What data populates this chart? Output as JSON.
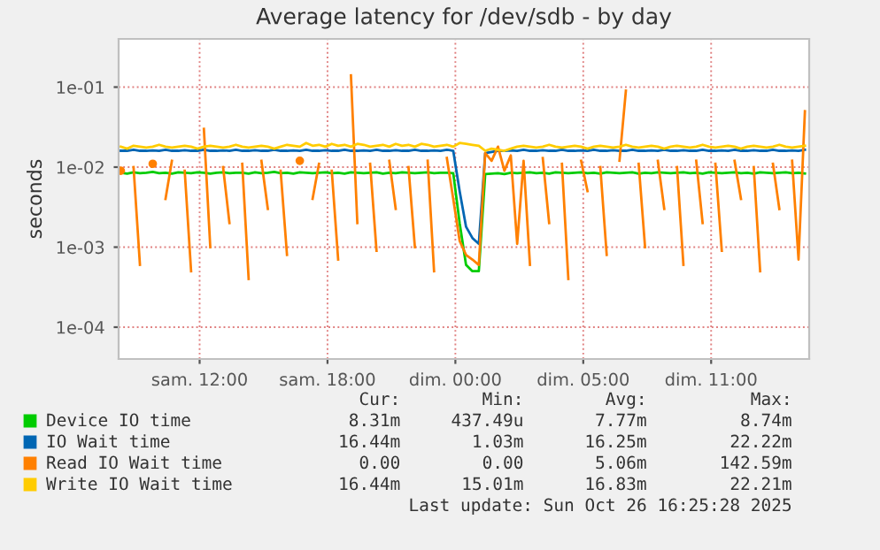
{
  "chart_data": {
    "type": "line",
    "title": "Average latency for /dev/sdb - by day",
    "ylabel": "seconds",
    "log": "y",
    "grid": true,
    "legend": "bottom",
    "marker": "none",
    "line_style": "solid",
    "xlim": [
      "2025-10-25T06:12",
      "2025-10-26T14:36"
    ],
    "ylim": [
      4e-05,
      0.4
    ],
    "xticks": [
      {
        "value": "2025-10-25T10:00",
        "label": "sam. 12:00"
      },
      {
        "value": "2025-10-25T16:00",
        "label": "sam. 18:00"
      },
      {
        "value": "2025-10-25T22:00",
        "label": "dim. 00:00"
      },
      {
        "value": "2025-10-26T04:00",
        "label": "dim. 05:00"
      },
      {
        "value": "2025-10-26T10:00",
        "label": "dim. 11:00"
      }
    ],
    "yticks": [
      {
        "value": 0.0001,
        "label": "1e-04"
      },
      {
        "value": 0.001,
        "label": "1e-03"
      },
      {
        "value": 0.01,
        "label": "1e-02"
      },
      {
        "value": 0.1,
        "label": "1e-01"
      }
    ],
    "x": [
      "2025-10-25T06:18",
      "2025-10-25T06:36",
      "2025-10-25T06:54",
      "2025-10-25T07:12",
      "2025-10-25T07:30",
      "2025-10-25T07:48",
      "2025-10-25T08:06",
      "2025-10-25T08:24",
      "2025-10-25T08:42",
      "2025-10-25T09:00",
      "2025-10-25T09:18",
      "2025-10-25T09:36",
      "2025-10-25T09:54",
      "2025-10-25T10:12",
      "2025-10-25T10:30",
      "2025-10-25T10:48",
      "2025-10-25T11:06",
      "2025-10-25T11:24",
      "2025-10-25T11:42",
      "2025-10-25T12:00",
      "2025-10-25T12:18",
      "2025-10-25T12:36",
      "2025-10-25T12:54",
      "2025-10-25T13:12",
      "2025-10-25T13:30",
      "2025-10-25T13:48",
      "2025-10-25T14:06",
      "2025-10-25T14:24",
      "2025-10-25T14:42",
      "2025-10-25T15:00",
      "2025-10-25T15:18",
      "2025-10-25T15:36",
      "2025-10-25T15:54",
      "2025-10-25T16:12",
      "2025-10-25T16:30",
      "2025-10-25T16:48",
      "2025-10-25T17:06",
      "2025-10-25T17:24",
      "2025-10-25T17:42",
      "2025-10-25T18:00",
      "2025-10-25T18:18",
      "2025-10-25T18:36",
      "2025-10-25T18:54",
      "2025-10-25T19:12",
      "2025-10-25T19:30",
      "2025-10-25T19:48",
      "2025-10-25T20:06",
      "2025-10-25T20:24",
      "2025-10-25T20:42",
      "2025-10-25T21:00",
      "2025-10-25T21:18",
      "2025-10-25T21:36",
      "2025-10-25T21:54",
      "2025-10-25T22:12",
      "2025-10-25T22:30",
      "2025-10-25T22:48",
      "2025-10-25T23:06",
      "2025-10-25T23:24",
      "2025-10-25T23:42",
      "2025-10-26T00:00",
      "2025-10-26T00:18",
      "2025-10-26T00:36",
      "2025-10-26T00:54",
      "2025-10-26T01:12",
      "2025-10-26T01:30",
      "2025-10-26T01:48",
      "2025-10-26T02:06",
      "2025-10-26T02:24",
      "2025-10-26T02:42",
      "2025-10-26T03:00",
      "2025-10-26T03:18",
      "2025-10-26T03:36",
      "2025-10-26T03:54",
      "2025-10-26T04:12",
      "2025-10-26T04:30",
      "2025-10-26T04:48",
      "2025-10-26T05:06",
      "2025-10-26T05:24",
      "2025-10-26T05:42",
      "2025-10-26T06:00",
      "2025-10-26T06:18",
      "2025-10-26T06:36",
      "2025-10-26T06:54",
      "2025-10-26T07:12",
      "2025-10-26T07:30",
      "2025-10-26T07:48",
      "2025-10-26T08:06",
      "2025-10-26T08:24",
      "2025-10-26T08:42",
      "2025-10-26T09:00",
      "2025-10-26T09:18",
      "2025-10-26T09:36",
      "2025-10-26T09:54",
      "2025-10-26T10:12",
      "2025-10-26T10:30",
      "2025-10-26T10:48",
      "2025-10-26T11:06",
      "2025-10-26T11:24",
      "2025-10-26T11:42",
      "2025-10-26T12:00",
      "2025-10-26T12:18",
      "2025-10-26T12:36",
      "2025-10-26T12:54",
      "2025-10-26T13:12",
      "2025-10-26T13:30",
      "2025-10-26T13:48",
      "2025-10-26T14:06",
      "2025-10-26T14:24"
    ],
    "series": [
      {
        "name": "Device IO time",
        "color": "#00cc00",
        "values": [
          0.0085,
          0.0083,
          0.0086,
          0.0084,
          0.0085,
          0.0087,
          0.0084,
          0.0085,
          0.0083,
          0.0086,
          0.0085,
          0.0084,
          0.0086,
          0.0085,
          0.0083,
          0.0085,
          0.0086,
          0.0084,
          0.0085,
          0.0085,
          0.0083,
          0.0086,
          0.0084,
          0.0085,
          0.0087,
          0.0084,
          0.0085,
          0.0083,
          0.0086,
          0.0085,
          0.0084,
          0.0085,
          0.0086,
          0.0084,
          0.0085,
          0.0083,
          0.0086,
          0.0085,
          0.0084,
          0.0085,
          0.0086,
          0.0083,
          0.0085,
          0.0084,
          0.0086,
          0.0085,
          0.0084,
          0.0085,
          0.0086,
          0.0084,
          0.0085,
          0.0085,
          0.0084,
          0.002,
          0.0006,
          0.0005,
          0.0005,
          0.0082,
          0.0083,
          0.0084,
          0.0082,
          0.0085,
          0.0084,
          0.0085,
          0.0086,
          0.0084,
          0.0085,
          0.0083,
          0.0086,
          0.0085,
          0.0084,
          0.0085,
          0.0086,
          0.0084,
          0.0085,
          0.0083,
          0.0086,
          0.0085,
          0.0084,
          0.0085,
          0.0086,
          0.0083,
          0.0085,
          0.0084,
          0.0086,
          0.0085,
          0.0084,
          0.0085,
          0.0086,
          0.0084,
          0.0085,
          0.0083,
          0.0086,
          0.0085,
          0.0084,
          0.0085,
          0.0086,
          0.0084,
          0.0085,
          0.0083,
          0.0086,
          0.0085,
          0.0084,
          0.0085,
          0.0086,
          0.0084,
          0.0085,
          0.0083
        ]
      },
      {
        "name": "IO Wait time",
        "color": "#0066b3",
        "values": [
          0.016,
          0.016,
          0.0165,
          0.016,
          0.016,
          0.0162,
          0.016,
          0.0165,
          0.016,
          0.016,
          0.0163,
          0.016,
          0.016,
          0.0165,
          0.016,
          0.016,
          0.0162,
          0.016,
          0.0165,
          0.016,
          0.016,
          0.0163,
          0.016,
          0.016,
          0.0165,
          0.016,
          0.016,
          0.0162,
          0.016,
          0.0165,
          0.016,
          0.016,
          0.0163,
          0.016,
          0.016,
          0.0165,
          0.016,
          0.016,
          0.0162,
          0.016,
          0.0165,
          0.016,
          0.016,
          0.0163,
          0.016,
          0.016,
          0.0165,
          0.016,
          0.016,
          0.0162,
          0.016,
          0.0165,
          0.016,
          0.005,
          0.0018,
          0.0013,
          0.0011,
          0.015,
          0.0155,
          0.016,
          0.016,
          0.0162,
          0.016,
          0.0165,
          0.016,
          0.016,
          0.0163,
          0.016,
          0.016,
          0.0165,
          0.016,
          0.016,
          0.0162,
          0.016,
          0.0165,
          0.016,
          0.016,
          0.0163,
          0.016,
          0.016,
          0.0165,
          0.016,
          0.016,
          0.0162,
          0.016,
          0.0165,
          0.016,
          0.016,
          0.0163,
          0.016,
          0.016,
          0.0165,
          0.016,
          0.016,
          0.0162,
          0.016,
          0.0165,
          0.016,
          0.016,
          0.0163,
          0.016,
          0.016,
          0.0165,
          0.016,
          0.016,
          0.0162,
          0.016,
          0.0165
        ]
      },
      {
        "name": "Read IO Wait time",
        "color": "#ff8000",
        "values": [
          0.009,
          null,
          0.01,
          0.0006,
          null,
          0.011,
          null,
          0.004,
          0.012,
          null,
          0.009,
          0.0005,
          null,
          0.03,
          0.001,
          null,
          0.01,
          0.002,
          null,
          0.011,
          0.0004,
          null,
          0.012,
          0.003,
          null,
          0.009,
          0.0008,
          null,
          0.012,
          null,
          0.004,
          0.011,
          null,
          0.009,
          0.0007,
          null,
          0.14,
          0.002,
          null,
          0.011,
          0.0009,
          null,
          0.012,
          0.003,
          null,
          0.01,
          0.001,
          null,
          0.012,
          0.0005,
          null,
          0.013,
          0.004,
          0.0012,
          0.0008,
          0.0007,
          0.0006,
          0.015,
          0.012,
          0.018,
          0.009,
          0.014,
          0.0011,
          0.012,
          0.0006,
          null,
          0.013,
          0.002,
          null,
          0.011,
          0.0004,
          null,
          0.012,
          0.005,
          null,
          0.01,
          0.0008,
          null,
          0.012,
          0.09,
          null,
          0.011,
          0.001,
          null,
          0.012,
          0.003,
          null,
          0.01,
          0.0006,
          null,
          0.012,
          0.002,
          null,
          0.011,
          0.0009,
          null,
          0.012,
          0.004,
          null,
          0.01,
          0.0005,
          null,
          0.011,
          0.003,
          null,
          0.012,
          0.0007,
          0.05
        ]
      },
      {
        "name": "Write IO Wait time",
        "color": "#ffcc00",
        "values": [
          0.018,
          0.017,
          0.0185,
          0.018,
          0.0175,
          0.018,
          0.019,
          0.018,
          0.0175,
          0.018,
          0.0185,
          0.018,
          0.017,
          0.018,
          0.0185,
          0.018,
          0.0175,
          0.018,
          0.019,
          0.018,
          0.0175,
          0.018,
          0.0185,
          0.018,
          0.017,
          0.018,
          0.019,
          0.0185,
          0.018,
          0.02,
          0.0185,
          0.019,
          0.018,
          0.0195,
          0.0185,
          0.019,
          0.018,
          0.0195,
          0.019,
          0.018,
          0.0185,
          0.019,
          0.018,
          0.0195,
          0.0185,
          0.019,
          0.018,
          0.0195,
          0.019,
          0.018,
          0.0185,
          0.019,
          0.018,
          0.02,
          0.0195,
          0.019,
          0.0185,
          0.016,
          0.017,
          0.0165,
          0.016,
          0.017,
          0.018,
          0.0185,
          0.018,
          0.0175,
          0.018,
          0.019,
          0.018,
          0.0175,
          0.018,
          0.0185,
          0.018,
          0.017,
          0.018,
          0.0185,
          0.018,
          0.0175,
          0.018,
          0.019,
          0.018,
          0.0175,
          0.018,
          0.0185,
          0.018,
          0.017,
          0.018,
          0.0185,
          0.018,
          0.0175,
          0.018,
          0.019,
          0.018,
          0.0175,
          0.018,
          0.0185,
          0.018,
          0.017,
          0.018,
          0.0185,
          0.018,
          0.0175,
          0.018,
          0.019,
          0.018,
          0.0175,
          0.018,
          0.0185
        ]
      }
    ],
    "annotations": [
      "Cur:",
      "Min:",
      "Avg:",
      "Max:",
      "8.31m",
      "437.49u",
      "7.77m",
      "8.74m",
      "16.44m",
      "1.03m",
      "16.25m",
      "22.22m",
      "0.00",
      "0.00",
      "5.06m",
      "142.59m",
      "16.44m",
      "15.01m",
      "16.83m",
      "22.21m",
      "Last update: Sun Oct 26 16:25:28 2025"
    ]
  }
}
